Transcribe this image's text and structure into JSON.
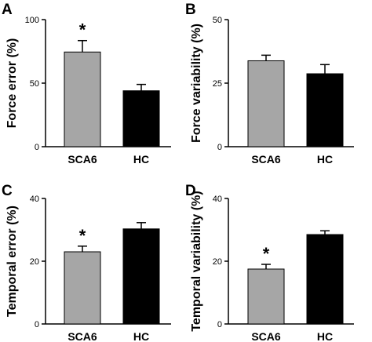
{
  "chart_data": [
    {
      "type": "bar",
      "panel": "A",
      "ylabel": "Force error (%)",
      "categories": [
        "SCA6",
        "HC"
      ],
      "values": [
        74.5,
        44
      ],
      "errors": [
        9,
        5
      ],
      "significant": [
        "*",
        ""
      ],
      "ylim": [
        0,
        100
      ],
      "yticks": [
        0,
        50,
        100
      ],
      "colors": [
        "#a6a6a6",
        "#000000"
      ]
    },
    {
      "type": "bar",
      "panel": "B",
      "ylabel": "Force variability (%)",
      "categories": [
        "SCA6",
        "HC"
      ],
      "values": [
        33.8,
        28.7
      ],
      "errors": [
        2.2,
        3.6
      ],
      "significant": [
        "",
        ""
      ],
      "ylim": [
        0,
        50
      ],
      "yticks": [
        0,
        25,
        50
      ],
      "colors": [
        "#a6a6a6",
        "#000000"
      ]
    },
    {
      "type": "bar",
      "panel": "C",
      "ylabel": "Temporal error (%)",
      "categories": [
        "SCA6",
        "HC"
      ],
      "values": [
        23,
        30.3
      ],
      "errors": [
        1.8,
        2
      ],
      "significant": [
        "*",
        ""
      ],
      "ylim": [
        0,
        40
      ],
      "yticks": [
        0,
        20,
        40
      ],
      "colors": [
        "#a6a6a6",
        "#000000"
      ]
    },
    {
      "type": "bar",
      "panel": "D",
      "ylabel": "Temporal variability (%)",
      "categories": [
        "SCA6",
        "HC"
      ],
      "values": [
        17.5,
        28.5
      ],
      "errors": [
        1.5,
        1.2
      ],
      "significant": [
        "*",
        ""
      ],
      "ylim": [
        0,
        40
      ],
      "yticks": [
        0,
        20,
        40
      ],
      "colors": [
        "#a6a6a6",
        "#000000"
      ]
    }
  ]
}
